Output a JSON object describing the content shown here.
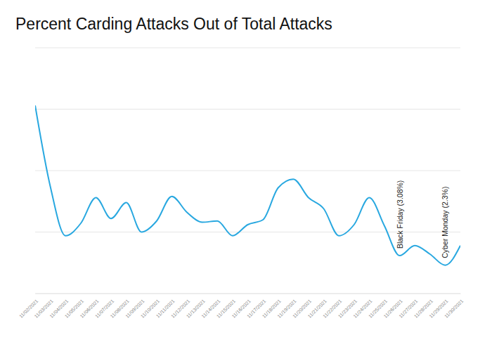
{
  "chart_data": {
    "type": "line",
    "title": "Percent Carding Attacks Out of Total Attacks",
    "categories": [
      "11/02/2021",
      "11/03/2021",
      "11/04/2021",
      "11/05/2021",
      "11/06/2021",
      "11/07/2021",
      "11/08/2021",
      "11/09/2021",
      "11/10/2021",
      "11/11/2021",
      "11/12/2021",
      "11/13/2021",
      "11/14/2021",
      "11/15/2021",
      "11/16/2021",
      "11/17/2021",
      "11/18/2021",
      "11/19/2021",
      "11/20/2021",
      "11/21/2021",
      "11/22/2021",
      "11/23/2021",
      "11/24/2021",
      "11/25/2021",
      "11/26/2021",
      "11/27/2021",
      "11/28/2021",
      "11/29/2021",
      "11/30/2021"
    ],
    "values": [
      15.3,
      8.7,
      4.7,
      5.7,
      7.8,
      6.1,
      7.4,
      5.0,
      5.9,
      7.9,
      6.6,
      5.8,
      5.9,
      4.7,
      5.6,
      6.0,
      8.6,
      9.3,
      7.8,
      6.9,
      4.7,
      5.6,
      7.8,
      5.5,
      3.08,
      3.9,
      3.2,
      2.3,
      3.9
    ],
    "color": "#29a8e0",
    "ylim": [
      0,
      20
    ],
    "yticks": [
      0,
      5,
      10,
      15,
      20
    ],
    "grid": true,
    "tick_labels": "x",
    "annotations": [
      {
        "text": "Black Friday (3.08%)",
        "x": "11/26/2021"
      },
      {
        "text": "Cyber Monday (2.3%)",
        "x": "11/29/2021"
      }
    ]
  }
}
